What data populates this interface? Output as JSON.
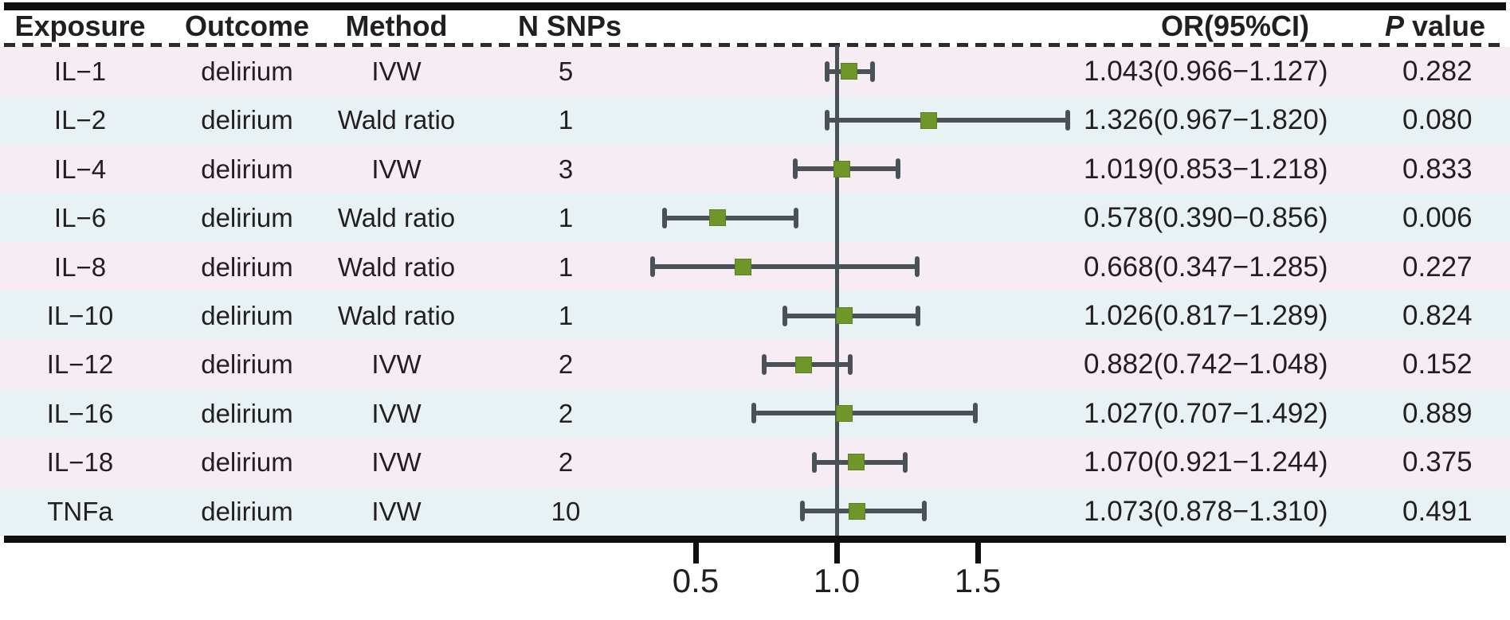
{
  "table": {
    "columns": {
      "exposure": "Exposure",
      "outcome": "Outcome",
      "method": "Method",
      "n_snps": "N SNPs",
      "or_ci": "OR(95%CI)",
      "p_italic": "P",
      "p_rest": "value"
    }
  },
  "colors": {
    "row_pink": "#f6edf4",
    "row_blue": "#e8f2f5",
    "marker_green": "#6f9628",
    "errorbar_gray": "#4b5257",
    "border_black": "#0f0f0f",
    "text": "#231f20"
  },
  "chart_data": {
    "type": "forest",
    "title": "",
    "xlabel": "",
    "ylabel": "",
    "grid": false,
    "legend_position": "none",
    "x_axis": {
      "scale": "linear",
      "reference_line": 1.0,
      "tick_values": [
        0.5,
        1.0,
        1.5
      ],
      "tick_labels": [
        "0.5",
        "1.0",
        "1.5"
      ]
    },
    "rows": [
      {
        "exposure": "IL−1",
        "outcome": "delirium",
        "method": "IVW",
        "n_snps": "5",
        "or": 1.043,
        "ci_low": 0.966,
        "ci_high": 1.127,
        "or_ci_text": "1.043(0.966−1.127)",
        "p_value": "0.282"
      },
      {
        "exposure": "IL−2",
        "outcome": "delirium",
        "method": "Wald ratio",
        "n_snps": "1",
        "or": 1.326,
        "ci_low": 0.967,
        "ci_high": 1.82,
        "or_ci_text": "1.326(0.967−1.820)",
        "p_value": "0.080"
      },
      {
        "exposure": "IL−4",
        "outcome": "delirium",
        "method": "IVW",
        "n_snps": "3",
        "or": 1.019,
        "ci_low": 0.853,
        "ci_high": 1.218,
        "or_ci_text": "1.019(0.853−1.218)",
        "p_value": "0.833"
      },
      {
        "exposure": "IL−6",
        "outcome": "delirium",
        "method": "Wald ratio",
        "n_snps": "1",
        "or": 0.578,
        "ci_low": 0.39,
        "ci_high": 0.856,
        "or_ci_text": "0.578(0.390−0.856)",
        "p_value": "0.006"
      },
      {
        "exposure": "IL−8",
        "outcome": "delirium",
        "method": "Wald ratio",
        "n_snps": "1",
        "or": 0.668,
        "ci_low": 0.347,
        "ci_high": 1.285,
        "or_ci_text": "0.668(0.347−1.285)",
        "p_value": "0.227"
      },
      {
        "exposure": "IL−10",
        "outcome": "delirium",
        "method": "Wald ratio",
        "n_snps": "1",
        "or": 1.026,
        "ci_low": 0.817,
        "ci_high": 1.289,
        "or_ci_text": "1.026(0.817−1.289)",
        "p_value": "0.824"
      },
      {
        "exposure": "IL−12",
        "outcome": "delirium",
        "method": "IVW",
        "n_snps": "2",
        "or": 0.882,
        "ci_low": 0.742,
        "ci_high": 1.048,
        "or_ci_text": "0.882(0.742−1.048)",
        "p_value": "0.152"
      },
      {
        "exposure": "IL−16",
        "outcome": "delirium",
        "method": "IVW",
        "n_snps": "2",
        "or": 1.027,
        "ci_low": 0.707,
        "ci_high": 1.492,
        "or_ci_text": "1.027(0.707−1.492)",
        "p_value": "0.889"
      },
      {
        "exposure": "IL−18",
        "outcome": "delirium",
        "method": "IVW",
        "n_snps": "2",
        "or": 1.07,
        "ci_low": 0.921,
        "ci_high": 1.244,
        "or_ci_text": "1.070(0.921−1.244)",
        "p_value": "0.375"
      },
      {
        "exposure": "TNFa",
        "outcome": "delirium",
        "method": "IVW",
        "n_snps": "10",
        "or": 1.073,
        "ci_low": 0.878,
        "ci_high": 1.31,
        "or_ci_text": "1.073(0.878−1.310)",
        "p_value": "0.491"
      }
    ]
  }
}
